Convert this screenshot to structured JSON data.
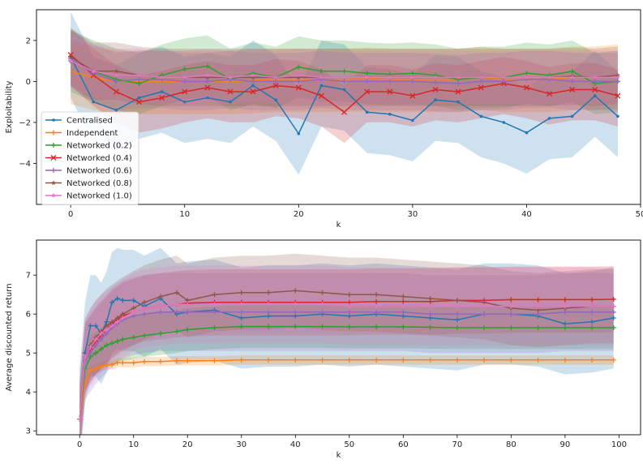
{
  "chart_data": [
    {
      "type": "line",
      "xlabel": "k",
      "ylabel": "Exploitability",
      "xlim": [
        -3,
        50
      ],
      "ylim": [
        -6,
        3.5
      ],
      "xticks": [
        0,
        10,
        20,
        30,
        40,
        50
      ],
      "yticks": [
        2,
        0,
        -2,
        -4
      ],
      "grid": false,
      "legend_position": "lower-left",
      "x": [
        0,
        2,
        4,
        6,
        8,
        10,
        12,
        14,
        16,
        18,
        20,
        22,
        24,
        26,
        28,
        30,
        32,
        34,
        36,
        38,
        40,
        42,
        44,
        46,
        48
      ],
      "series": [
        {
          "name": "Centralised",
          "color": "#1f77b4",
          "marker": "dot",
          "values": [
            1.2,
            -1.0,
            -1.4,
            -0.8,
            -0.5,
            -1.0,
            -0.8,
            -1.0,
            -0.2,
            -0.9,
            -2.55,
            -0.2,
            -0.4,
            -1.5,
            -1.6,
            -1.9,
            -0.9,
            -1.0,
            -1.7,
            -2.0,
            -2.5,
            -1.8,
            -1.7,
            -0.7,
            -1.7
          ],
          "band": [
            2.2,
            2.0
          ]
        },
        {
          "name": "Independent",
          "color": "#ff7f0e",
          "marker": "none",
          "values": [
            0.5,
            0.2,
            0.0,
            0.0,
            0.0,
            0.0,
            0.0,
            0.0,
            0.05,
            0.1,
            0.1,
            0.1,
            0.1,
            0.15,
            0.1,
            0.1,
            0.1,
            0.1,
            0.2,
            0.1,
            0.1,
            0.1,
            0.2,
            0.2,
            0.3
          ],
          "band": [
            1.5,
            1.6
          ]
        },
        {
          "name": "Networked (0.2)",
          "color": "#2ca02c",
          "marker": "plus",
          "values": [
            1.0,
            0.5,
            0.1,
            -0.1,
            0.3,
            0.6,
            0.75,
            0.1,
            0.4,
            0.2,
            0.7,
            0.5,
            0.5,
            0.4,
            0.35,
            0.4,
            0.3,
            0.1,
            0.2,
            0.2,
            0.4,
            0.3,
            0.5,
            -0.1,
            0.0
          ],
          "band": [
            1.5,
            1.5
          ]
        },
        {
          "name": "Networked (0.4)",
          "color": "#d62728",
          "marker": "x",
          "values": [
            1.3,
            0.3,
            -0.5,
            -1.0,
            -0.8,
            -0.5,
            -0.3,
            -0.5,
            -0.5,
            -0.2,
            -0.3,
            -0.7,
            -1.5,
            -0.5,
            -0.5,
            -0.7,
            -0.4,
            -0.5,
            -0.3,
            -0.1,
            -0.3,
            -0.6,
            -0.4,
            -0.4,
            -0.7
          ],
          "band": [
            1.3,
            1.5
          ]
        },
        {
          "name": "Networked (0.6)",
          "color": "#9467bd",
          "marker": "plus",
          "values": [
            1.1,
            0.4,
            0.0,
            0.1,
            0.1,
            0.0,
            0.0,
            0.1,
            0.0,
            0.0,
            0.0,
            0.1,
            0.0,
            0.0,
            0.0,
            0.0,
            -0.05,
            -0.1,
            0.0,
            0.0,
            0.1,
            0.1,
            0.0,
            0.0,
            0.0
          ],
          "band": [
            1.4,
            1.4
          ]
        },
        {
          "name": "Networked (0.8)",
          "color": "#8c564b",
          "marker": "star",
          "values": [
            1.2,
            0.5,
            0.5,
            0.3,
            0.2,
            0.2,
            0.2,
            0.2,
            0.2,
            0.2,
            0.2,
            0.2,
            0.2,
            0.2,
            0.2,
            0.2,
            0.2,
            0.2,
            0.2,
            0.2,
            0.2,
            0.2,
            0.25,
            0.2,
            0.3
          ],
          "band": [
            1.4,
            1.4
          ]
        },
        {
          "name": "Networked (1.0)",
          "color": "#e377c2",
          "marker": "star",
          "values": [
            1.0,
            0.5,
            0.3,
            0.3,
            0.2,
            0.2,
            0.3,
            0.2,
            0.3,
            0.2,
            0.3,
            0.2,
            0.2,
            0.2,
            0.2,
            0.2,
            0.2,
            0.2,
            0.2,
            0.2,
            0.2,
            0.2,
            0.2,
            0.2,
            0.2
          ],
          "band": [
            1.3,
            1.3
          ]
        }
      ]
    },
    {
      "type": "line",
      "xlabel": "k",
      "ylabel": "Average discounted return",
      "xlim": [
        -8,
        104
      ],
      "ylim": [
        2.9,
        7.9
      ],
      "xticks": [
        0,
        10,
        20,
        30,
        40,
        50,
        60,
        70,
        80,
        90,
        100
      ],
      "yticks": [
        3,
        4,
        5,
        6,
        7
      ],
      "grid": false,
      "x": [
        0,
        1,
        2,
        3,
        4,
        5,
        6,
        7,
        8,
        10,
        12,
        15,
        18,
        20,
        25,
        30,
        35,
        40,
        45,
        50,
        55,
        60,
        65,
        70,
        75,
        80,
        85,
        90,
        95,
        99
      ],
      "series": [
        {
          "name": "Centralised",
          "color": "#1f77b4",
          "values": [
            3.3,
            5.0,
            5.7,
            5.7,
            5.5,
            5.8,
            6.3,
            6.4,
            6.35,
            6.35,
            6.2,
            6.4,
            6.0,
            6.05,
            6.1,
            5.9,
            5.95,
            5.95,
            6.0,
            5.95,
            6.0,
            5.95,
            5.9,
            5.85,
            6.0,
            6.0,
            5.95,
            5.75,
            5.8,
            5.9
          ],
          "band": [
            1.3,
            1.3
          ]
        },
        {
          "name": "Independent",
          "color": "#ff7f0e",
          "values": [
            3.3,
            4.2,
            4.55,
            4.6,
            4.65,
            4.7,
            4.7,
            4.75,
            4.75,
            4.75,
            4.78,
            4.78,
            4.8,
            4.8,
            4.8,
            4.82,
            4.82,
            4.82,
            4.82,
            4.82,
            4.82,
            4.82,
            4.82,
            4.82,
            4.82,
            4.82,
            4.82,
            4.82,
            4.82,
            4.82
          ],
          "band": [
            0.12,
            0.12
          ]
        },
        {
          "name": "Networked (0.2)",
          "color": "#2ca02c",
          "values": [
            3.3,
            4.6,
            4.9,
            5.0,
            5.1,
            5.2,
            5.25,
            5.3,
            5.35,
            5.4,
            5.45,
            5.5,
            5.55,
            5.6,
            5.65,
            5.68,
            5.68,
            5.68,
            5.68,
            5.67,
            5.67,
            5.67,
            5.66,
            5.65,
            5.65,
            5.65,
            5.65,
            5.65,
            5.65,
            5.65
          ],
          "band": [
            0.55,
            0.55
          ]
        },
        {
          "name": "Networked (0.4)",
          "color": "#d62728",
          "values": [
            3.3,
            4.9,
            5.1,
            5.3,
            5.45,
            5.6,
            5.75,
            5.85,
            5.95,
            6.05,
            6.15,
            6.2,
            6.25,
            6.28,
            6.3,
            6.3,
            6.3,
            6.3,
            6.3,
            6.3,
            6.32,
            6.32,
            6.32,
            6.35,
            6.35,
            6.37,
            6.37,
            6.37,
            6.37,
            6.38
          ],
          "band": [
            0.85,
            0.85
          ]
        },
        {
          "name": "Networked (0.6)",
          "color": "#9467bd",
          "values": [
            3.3,
            4.8,
            5.0,
            5.2,
            5.35,
            5.5,
            5.65,
            5.75,
            5.85,
            5.95,
            6.0,
            6.05,
            6.05,
            6.05,
            6.05,
            6.05,
            6.05,
            6.05,
            6.05,
            6.05,
            6.05,
            6.05,
            6.0,
            6.0,
            6.0,
            6.0,
            6.0,
            6.05,
            6.05,
            6.05
          ],
          "band": [
            1.0,
            1.0
          ]
        },
        {
          "name": "Networked (0.8)",
          "color": "#8c564b",
          "values": [
            3.3,
            4.9,
            5.2,
            5.4,
            5.55,
            5.7,
            5.8,
            5.9,
            6.0,
            6.15,
            6.3,
            6.45,
            6.55,
            6.35,
            6.5,
            6.55,
            6.55,
            6.6,
            6.55,
            6.5,
            6.5,
            6.45,
            6.4,
            6.35,
            6.3,
            6.15,
            6.1,
            6.15,
            6.2,
            6.2
          ],
          "band": [
            0.95,
            0.95
          ]
        },
        {
          "name": "Networked (1.0)",
          "color": "#e377c2",
          "values": [
            3.3,
            4.9,
            5.15,
            5.35,
            5.5,
            5.6,
            5.7,
            5.8,
            5.9,
            6.05,
            6.15,
            6.2,
            6.25,
            6.25,
            6.25,
            6.25,
            6.25,
            6.25,
            6.25,
            6.2,
            6.2,
            6.2,
            6.2,
            6.2,
            6.2,
            6.2,
            6.2,
            6.2,
            6.2,
            6.2
          ],
          "band": [
            1.0,
            1.0
          ]
        }
      ]
    }
  ]
}
